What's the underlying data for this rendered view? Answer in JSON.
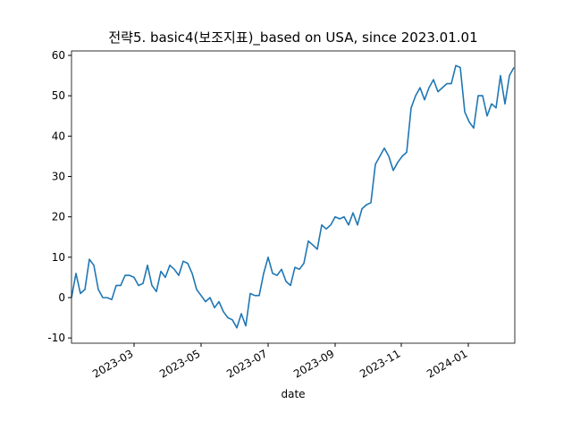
{
  "chart_data": {
    "type": "line",
    "title": "전략5. basic4(보조지표)_based on USA, since 2023.01.01",
    "x_label": "date",
    "series": [
      {
        "color": "#1f77b4",
        "values": [
          0,
          6,
          1,
          2,
          9.5,
          8,
          2,
          0,
          0,
          -0.5,
          3,
          3,
          5.5,
          5.5,
          5,
          3,
          3.5,
          8,
          3,
          1.5,
          6.5,
          5,
          8,
          7,
          5.5,
          9,
          8.5,
          6,
          2,
          0.5,
          -1,
          0,
          -2.5,
          -1,
          -3.5,
          -5,
          -5.5,
          -7.5,
          -4,
          -7,
          1,
          0.5,
          0.5,
          6,
          10,
          6,
          5.5,
          7,
          4,
          3,
          7.5,
          7,
          8.5,
          14,
          13,
          12,
          18,
          17,
          18,
          20,
          19.5,
          20,
          18,
          21,
          18,
          22,
          23,
          23.5,
          33,
          35,
          37,
          35,
          31.5,
          33.5,
          35,
          36,
          47,
          50,
          52,
          49,
          52,
          54,
          51,
          52,
          53,
          53,
          57.5,
          57,
          46,
          43.5,
          42,
          50,
          50,
          45,
          48,
          47,
          55,
          48,
          55,
          57
        ]
      }
    ],
    "xlim": [
      0,
      99.2
    ],
    "xticks": [
      {
        "value": 14,
        "label": "2023-03"
      },
      {
        "value": 29,
        "label": "2023-05"
      },
      {
        "value": 44,
        "label": "2023-07"
      },
      {
        "value": 59,
        "label": "2023-09"
      },
      {
        "value": 73.8,
        "label": "2023-11"
      },
      {
        "value": 88.8,
        "label": "2024-01"
      }
    ],
    "ylim": [
      -11.3,
      61.1
    ],
    "yticks": [
      -10,
      0,
      10,
      20,
      30,
      40,
      50,
      60
    ]
  }
}
